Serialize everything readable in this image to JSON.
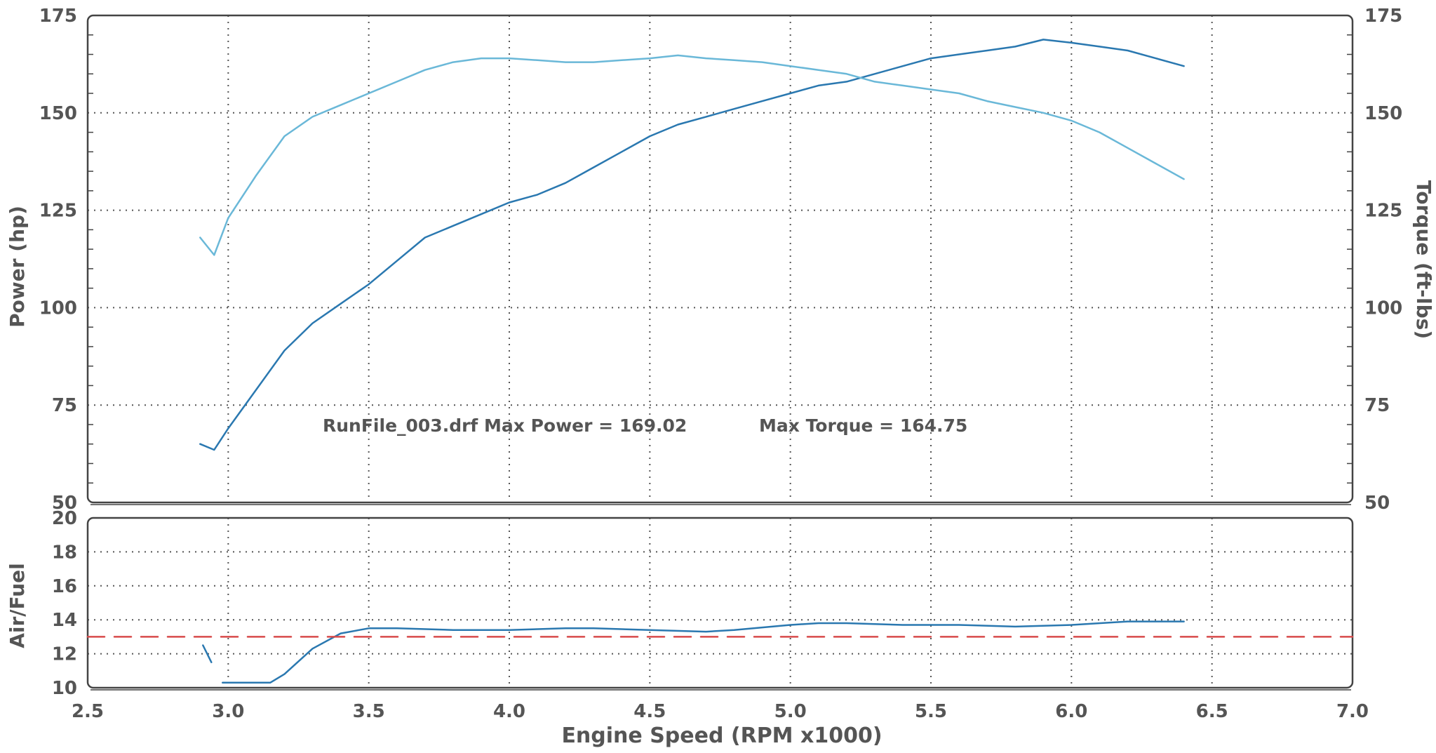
{
  "colors": {
    "power_line": "#2a78b0",
    "torque_line": "#6ab8d8",
    "afr_line": "#2a78b0",
    "target_line": "#d84a4a",
    "grid": "#555555",
    "frame": "#444444",
    "text": "#555555"
  },
  "annotation": {
    "run": "RunFile_003.drf Max Power = 169.02",
    "torque": "Max Torque = 164.75"
  },
  "chart_data": [
    {
      "type": "line",
      "title": "",
      "xlabel": "",
      "ylabel_left": "Power (hp)",
      "ylabel_right": "Torque (ft-lbs)",
      "xlim": [
        2.5,
        7.0
      ],
      "ylim": [
        50,
        175
      ],
      "grid": true,
      "x_ticks": [
        "2.5",
        "3.0",
        "3.5",
        "4.0",
        "4.5",
        "5.0",
        "5.5",
        "6.0",
        "6.5",
        "7.0"
      ],
      "y_ticks_left": [
        "50",
        "75",
        "100",
        "125",
        "150",
        "175"
      ],
      "y_ticks_right": [
        "50",
        "75",
        "100",
        "125",
        "150",
        "175"
      ],
      "series": [
        {
          "key": "power",
          "color_key": "power_line",
          "x": [
            2.9,
            2.95,
            3.0,
            3.1,
            3.2,
            3.3,
            3.4,
            3.5,
            3.6,
            3.7,
            3.8,
            3.9,
            4.0,
            4.1,
            4.2,
            4.3,
            4.4,
            4.5,
            4.6,
            4.7,
            4.8,
            4.9,
            5.0,
            5.1,
            5.2,
            5.3,
            5.4,
            5.5,
            5.6,
            5.7,
            5.8,
            5.9,
            6.0,
            6.1,
            6.2,
            6.3,
            6.4
          ],
          "y": [
            65,
            63.5,
            69,
            79,
            89,
            96,
            101,
            106,
            112,
            118,
            121,
            124,
            127,
            129,
            132,
            136,
            140,
            144,
            147,
            149,
            151,
            153,
            155,
            157,
            158,
            160,
            162,
            164,
            165,
            166,
            167,
            168.8,
            168,
            167,
            166,
            164,
            162
          ]
        },
        {
          "key": "torque",
          "color_key": "torque_line",
          "x": [
            2.9,
            2.95,
            3.0,
            3.1,
            3.2,
            3.3,
            3.4,
            3.5,
            3.6,
            3.7,
            3.8,
            3.9,
            4.0,
            4.1,
            4.2,
            4.3,
            4.4,
            4.5,
            4.6,
            4.7,
            4.8,
            4.9,
            5.0,
            5.1,
            5.2,
            5.3,
            5.4,
            5.5,
            5.6,
            5.7,
            5.8,
            5.9,
            6.0,
            6.1,
            6.2,
            6.3,
            6.4
          ],
          "y": [
            118,
            113.5,
            123,
            134,
            144,
            149,
            152,
            155,
            158,
            161,
            163,
            164,
            164,
            163.5,
            163,
            163,
            163.5,
            164,
            164.75,
            164,
            163.5,
            163,
            162,
            161,
            160,
            158,
            157,
            156,
            155,
            153,
            151.5,
            150,
            148,
            145,
            141,
            137,
            133
          ]
        }
      ]
    },
    {
      "type": "line",
      "title": "",
      "xlabel": "Engine Speed (RPM x1000)",
      "ylabel": "Air/Fuel",
      "xlim": [
        2.5,
        7.0
      ],
      "ylim": [
        10,
        20
      ],
      "grid": true,
      "x_ticks": [
        "2.5",
        "3.0",
        "3.5",
        "4.0",
        "4.5",
        "5.0",
        "5.5",
        "6.0",
        "6.5",
        "7.0"
      ],
      "y_ticks": [
        "10",
        "12",
        "14",
        "16",
        "18",
        "20"
      ],
      "series": [
        {
          "key": "afr_start",
          "color_key": "afr_line",
          "x": [
            2.91,
            2.94
          ],
          "y": [
            12.5,
            11.5
          ]
        },
        {
          "key": "afr",
          "color_key": "afr_line",
          "x": [
            2.98,
            3.05,
            3.15,
            3.2,
            3.3,
            3.4,
            3.5,
            3.6,
            3.8,
            4.0,
            4.2,
            4.3,
            4.5,
            4.7,
            4.8,
            5.0,
            5.1,
            5.2,
            5.4,
            5.6,
            5.8,
            6.0,
            6.2,
            6.3,
            6.4
          ],
          "y": [
            10.3,
            10.3,
            10.3,
            10.8,
            12.3,
            13.2,
            13.5,
            13.5,
            13.4,
            13.4,
            13.5,
            13.5,
            13.4,
            13.3,
            13.4,
            13.7,
            13.8,
            13.8,
            13.7,
            13.7,
            13.6,
            13.7,
            13.9,
            13.9,
            13.9
          ]
        },
        {
          "key": "target",
          "color_key": "target_line",
          "dashed": true,
          "x": [
            2.5,
            7.0
          ],
          "y": [
            13.0,
            13.0
          ]
        }
      ]
    }
  ]
}
